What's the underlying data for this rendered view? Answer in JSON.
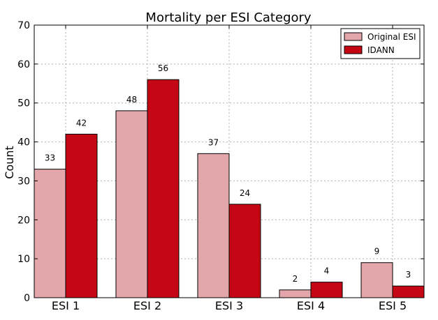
{
  "chart_data": {
    "type": "bar",
    "title": "Mortality per ESI Category",
    "xlabel": "",
    "ylabel": "Count",
    "categories": [
      "ESI 1",
      "ESI 2",
      "ESI 3",
      "ESI 4",
      "ESI 5"
    ],
    "series": [
      {
        "name": "Original ESI",
        "values": [
          33,
          48,
          37,
          2,
          9
        ],
        "color": "#e3a6aa"
      },
      {
        "name": "IDANN",
        "values": [
          42,
          56,
          24,
          4,
          3
        ],
        "color": "#c40615"
      }
    ],
    "ylim": [
      0,
      70
    ],
    "yticks": [
      0,
      10,
      20,
      30,
      40,
      50,
      60,
      70
    ],
    "grid": true,
    "legend_position": "top-right"
  }
}
